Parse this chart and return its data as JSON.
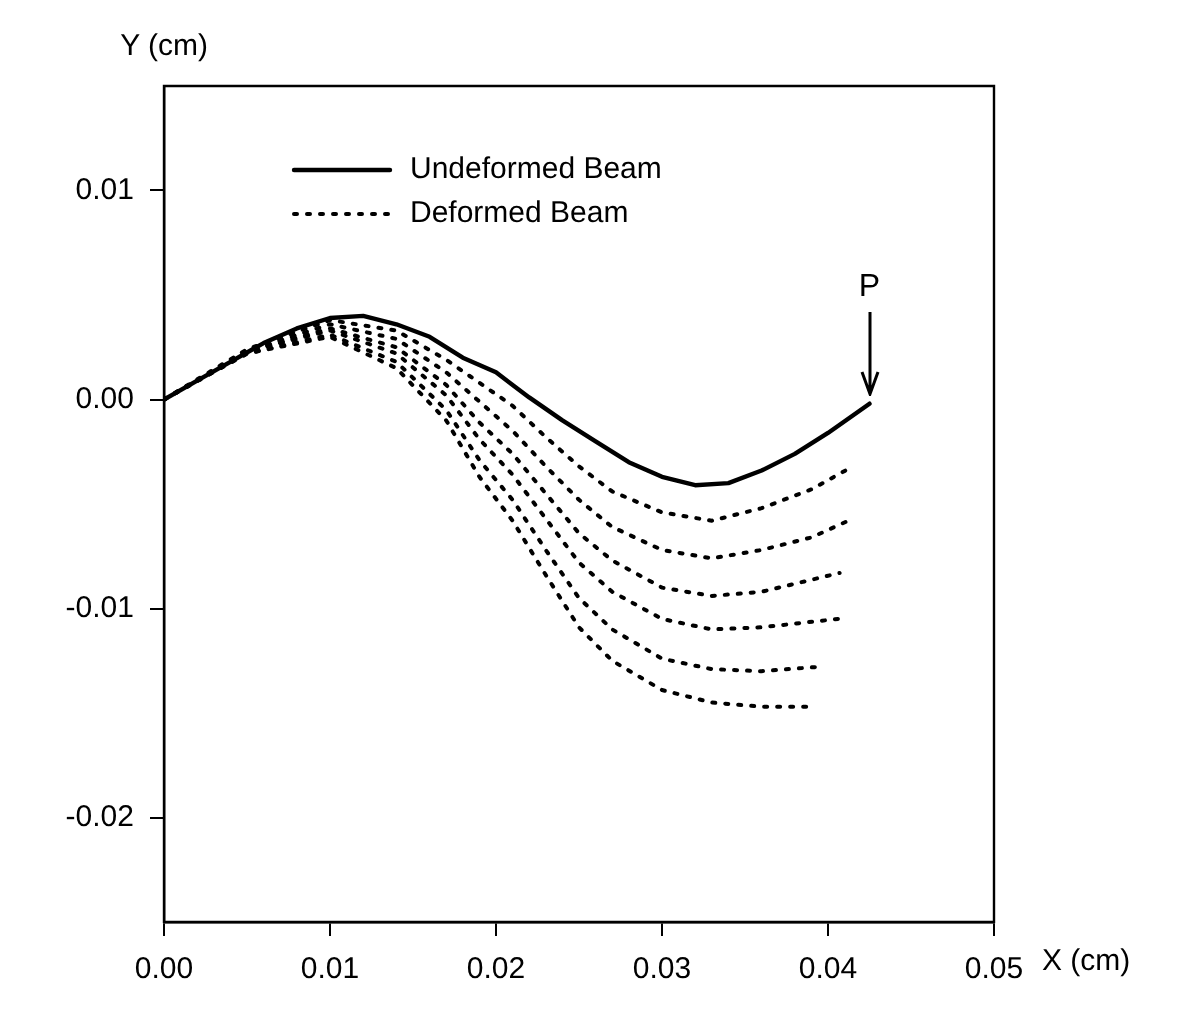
{
  "chart_data": {
    "type": "line",
    "xlabel": "X (cm)",
    "ylabel": "Y (cm)",
    "xlim": [
      0,
      0.05
    ],
    "ylim": [
      -0.025,
      0.015
    ],
    "xticks": [
      {
        "value": 0,
        "label": "0.00"
      },
      0.01,
      0.02,
      0.03,
      0.04,
      0.05
    ],
    "yticks": [
      {
        "value": -0.02,
        "label": "-0.02"
      },
      {
        "value": -0.01,
        "label": "-0.01"
      },
      {
        "value": 0,
        "label": "0.00"
      },
      {
        "value": 0.01,
        "label": "0.01"
      }
    ],
    "grid": false,
    "legend": "top left",
    "marker": "none",
    "annotations": [
      {
        "text": "P",
        "x": 0.0425,
        "y": 0
      }
    ],
    "series": [
      {
        "name": "Undeformed Beam",
        "color": "#000000",
        "line_style": "solid",
        "x": [
          0,
          0.002,
          0.004,
          0.006,
          0.008,
          0.01,
          0.012,
          0.014,
          0.016,
          0.018,
          0.02,
          0.022,
          0.024,
          0.026,
          0.028,
          0.03,
          0.032,
          0.034,
          0.036,
          0.038,
          0.04,
          0.0425
        ],
        "values": [
          0,
          0.0009,
          0.0018,
          0.0027,
          0.0034,
          0.0039,
          0.004,
          0.0036,
          0.003,
          0.002,
          0.0013,
          0.0001,
          -0.001,
          -0.002,
          -0.003,
          -0.0037,
          -0.0041,
          -0.004,
          -0.0034,
          -0.0026,
          -0.0016,
          -0.0002
        ]
      },
      {
        "name": "Deformed Beam",
        "color": "#000000",
        "line_style": "dotted",
        "x": [
          0,
          0.005,
          0.01,
          0.014,
          0.017,
          0.019,
          0.021,
          0.023,
          0.025,
          0.027,
          0.03,
          0.033,
          0.036,
          0.039,
          0.0415
        ],
        "values": [
          0,
          0.0024,
          0.0038,
          0.0033,
          0.0019,
          0.0008,
          -0.0003,
          -0.0018,
          -0.0032,
          -0.0044,
          -0.0054,
          -0.0058,
          -0.0052,
          -0.0043,
          -0.0032
        ]
      },
      {
        "color": "#000000",
        "line_style": "dotted",
        "x": [
          0,
          0.005,
          0.01,
          0.014,
          0.017,
          0.019,
          0.021,
          0.023,
          0.025,
          0.027,
          0.03,
          0.033,
          0.036,
          0.039,
          0.0415
        ],
        "values": [
          0,
          0.0023,
          0.0036,
          0.0029,
          0.0013,
          -0.0001,
          -0.0015,
          -0.0032,
          -0.0048,
          -0.0061,
          -0.0072,
          -0.0076,
          -0.0072,
          -0.0066,
          -0.0057
        ]
      },
      {
        "color": "#000000",
        "line_style": "dotted",
        "x": [
          0,
          0.005,
          0.01,
          0.014,
          0.017,
          0.019,
          0.021,
          0.023,
          0.025,
          0.027,
          0.03,
          0.033,
          0.036,
          0.0407
        ],
        "values": [
          0,
          0.0023,
          0.0034,
          0.0025,
          0.0007,
          -0.0011,
          -0.0026,
          -0.0045,
          -0.0064,
          -0.0077,
          -0.009,
          -0.0094,
          -0.0092,
          -0.0083
        ]
      },
      {
        "color": "#000000",
        "line_style": "dotted",
        "x": [
          0,
          0.005,
          0.01,
          0.014,
          0.017,
          0.019,
          0.021,
          0.023,
          0.025,
          0.027,
          0.03,
          0.033,
          0.036,
          0.0406
        ],
        "values": [
          0,
          0.0023,
          0.0033,
          0.0022,
          0.0002,
          -0.0019,
          -0.0036,
          -0.0057,
          -0.0078,
          -0.0092,
          -0.0105,
          -0.011,
          -0.0109,
          -0.0105
        ]
      },
      {
        "color": "#000000",
        "line_style": "dotted",
        "x": [
          0,
          0.005,
          0.01,
          0.014,
          0.017,
          0.019,
          0.021,
          0.023,
          0.025,
          0.027,
          0.03,
          0.033,
          0.036,
          0.0393
        ],
        "values": [
          0,
          0.0022,
          0.0031,
          0.0018,
          -0.0005,
          -0.0029,
          -0.0048,
          -0.0072,
          -0.0095,
          -0.011,
          -0.0124,
          -0.0129,
          -0.013,
          -0.0128
        ]
      },
      {
        "color": "#000000",
        "line_style": "dotted",
        "x": [
          0,
          0.005,
          0.01,
          0.014,
          0.017,
          0.019,
          0.021,
          0.023,
          0.025,
          0.027,
          0.03,
          0.033,
          0.036,
          0.0389
        ],
        "values": [
          0,
          0.0022,
          0.003,
          0.0015,
          -0.001,
          -0.0037,
          -0.0058,
          -0.0084,
          -0.0109,
          -0.0125,
          -0.0139,
          -0.0145,
          -0.0147,
          -0.0147
        ]
      }
    ]
  }
}
